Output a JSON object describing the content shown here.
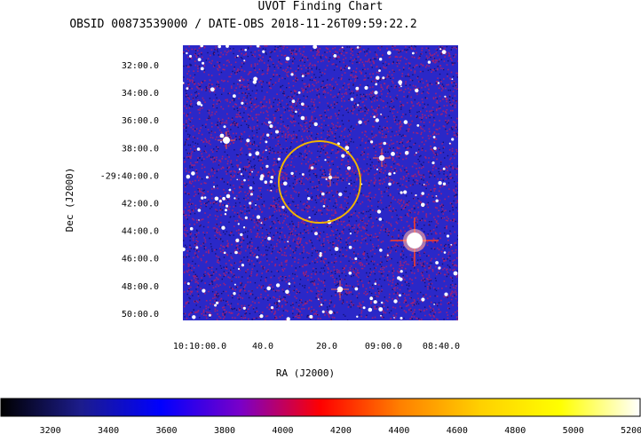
{
  "chart_data": {
    "type": "heatmap",
    "title": "UVOT Finding Chart",
    "subtitle": "OBSID 00873539000 / DATE-OBS 2018-11-26T09:59:22.2",
    "xlabel": "RA (J2000)",
    "ylabel": "Dec (J2000)",
    "x_ticks": [
      "10:10:00.0",
      "40.0",
      "20.0",
      "09:00.0",
      "08:40.0"
    ],
    "y_ticks": [
      "32:00.0",
      "34:00.0",
      "36:00.0",
      "38:00.0",
      "-29:40:00.0",
      "42:00.0",
      "44:00.0",
      "46:00.0",
      "48:00.0",
      "50:00.0"
    ],
    "colorbar": {
      "ticks": [
        3200,
        3400,
        3600,
        3800,
        4000,
        4200,
        4400,
        4600,
        4800,
        5000,
        5200
      ],
      "range": [
        3030,
        5230
      ],
      "colors": [
        "#000000",
        "#1c1c8c",
        "#0000ff",
        "#7a00c8",
        "#ff0000",
        "#ff8000",
        "#ffd000",
        "#ffff00",
        "#ffffff"
      ]
    },
    "colors": {
      "image_background": "#2a28c8",
      "noise": "#c81e5a",
      "star": "#ffffff",
      "circle": "#f0b400"
    }
  }
}
